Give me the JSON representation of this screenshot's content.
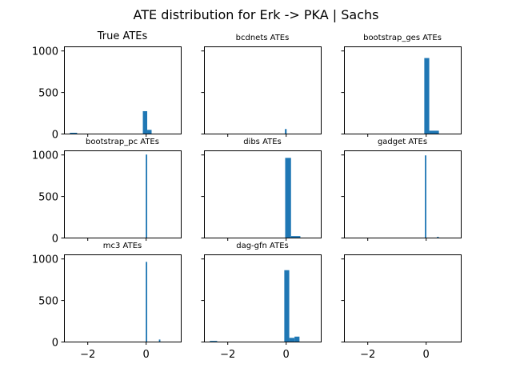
{
  "chart_data": {
    "type": "histogram-grid",
    "title": "ATE distribution for Erk -> PKA | Sachs",
    "shared_xlim": [
      -2.8,
      1.2
    ],
    "shared_ylim": [
      0,
      1050
    ],
    "x_ticks": [
      -2,
      0
    ],
    "y_ticks": [
      0,
      500,
      1000
    ],
    "bar_color": "#1f77b4",
    "panels": [
      {
        "title": "True ATEs",
        "bars": [
          {
            "x0": -2.6,
            "x1": -2.35,
            "count": 10
          },
          {
            "x0": -0.1,
            "x1": 0.05,
            "count": 270
          },
          {
            "x0": 0.05,
            "x1": 0.2,
            "count": 45
          }
        ]
      },
      {
        "title": "bcdnets ATEs",
        "bars": [
          {
            "x0": -0.03,
            "x1": 0.03,
            "count": 55
          }
        ]
      },
      {
        "title": "bootstrap_ges ATEs",
        "bars": [
          {
            "x0": -0.05,
            "x1": 0.12,
            "count": 910
          },
          {
            "x0": 0.12,
            "x1": 0.45,
            "count": 35
          }
        ]
      },
      {
        "title": "bootstrap_pc ATEs",
        "bars": [
          {
            "x0": 0.0,
            "x1": 0.05,
            "count": 1000
          }
        ]
      },
      {
        "title": "dibs ATEs",
        "bars": [
          {
            "x0": -0.02,
            "x1": 0.18,
            "count": 960
          },
          {
            "x0": 0.18,
            "x1": 0.5,
            "count": 18
          }
        ]
      },
      {
        "title": "gadget ATEs",
        "bars": [
          {
            "x0": -0.03,
            "x1": 0.02,
            "count": 990
          },
          {
            "x0": 0.38,
            "x1": 0.45,
            "count": 8
          }
        ]
      },
      {
        "title": "mc3 ATEs",
        "bars": [
          {
            "x0": 0.0,
            "x1": 0.05,
            "count": 960
          },
          {
            "x0": 0.45,
            "x1": 0.5,
            "count": 25
          }
        ]
      },
      {
        "title": "dag-gfn ATEs",
        "bars": [
          {
            "x0": -2.6,
            "x1": -2.35,
            "count": 8
          },
          {
            "x0": -0.05,
            "x1": 0.12,
            "count": 860
          },
          {
            "x0": 0.12,
            "x1": 0.3,
            "count": 45
          },
          {
            "x0": 0.3,
            "x1": 0.47,
            "count": 60
          }
        ]
      },
      {
        "title": "",
        "bars": []
      }
    ]
  }
}
